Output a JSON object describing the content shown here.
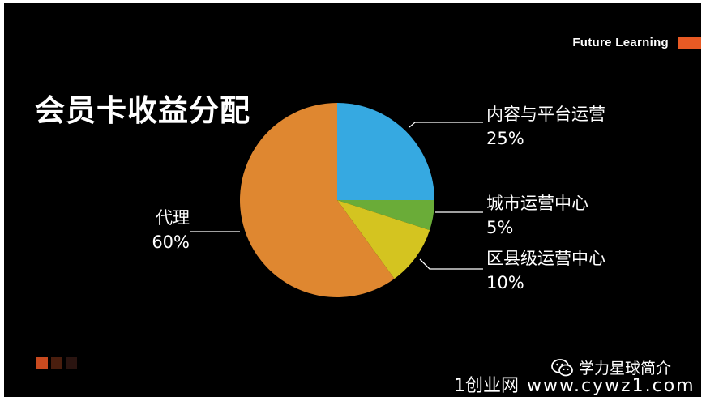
{
  "slide": {
    "brand": "Future Learning",
    "brand_color": "#e85a24",
    "watermark_account": "学力星球简介",
    "watermark_site": "1创业网",
    "watermark_url": "www.cywz1.com",
    "wechat_icon": "wechat-icon"
  },
  "chart_data": {
    "type": "pie",
    "title": "会员卡收益分配",
    "slices": [
      {
        "label": "内容与平台运营",
        "value": 25,
        "display": "25%",
        "color": "#36a9e1"
      },
      {
        "label": "城市运营中心",
        "value": 5,
        "display": "5%",
        "color": "#6aac38"
      },
      {
        "label": "区县级运营中心",
        "value": 10,
        "display": "10%",
        "color": "#d4c420"
      },
      {
        "label": "代理",
        "value": 60,
        "display": "60%",
        "color": "#df8730"
      }
    ]
  }
}
